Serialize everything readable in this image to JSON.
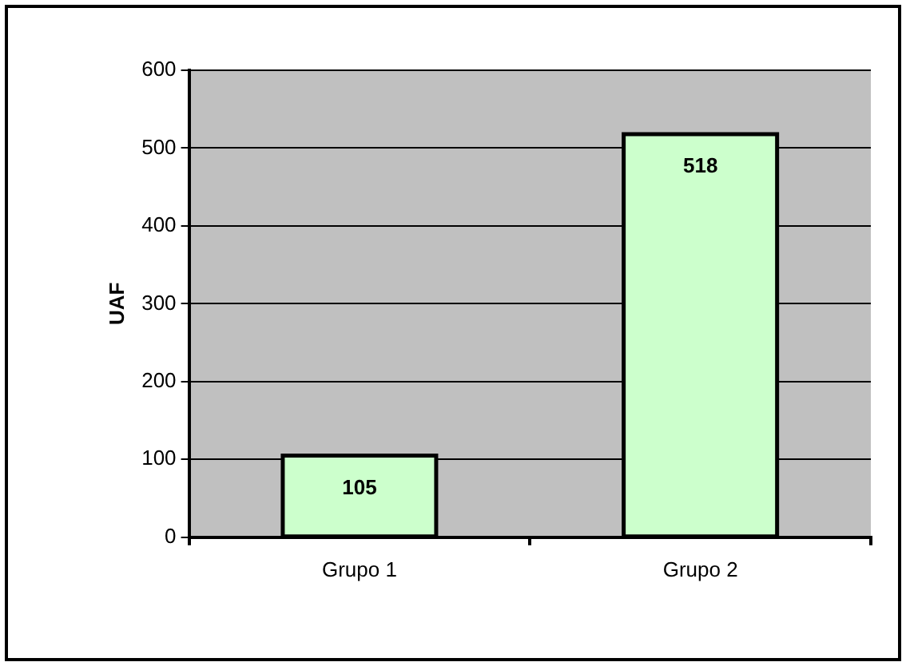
{
  "chart_data": {
    "type": "bar",
    "ylabel": "UAF",
    "categories": [
      "Grupo 1",
      "Grupo 2"
    ],
    "values": [
      105,
      518
    ],
    "color": "#ccffcc",
    "ylim": [
      0,
      600
    ],
    "yticks": [
      0,
      100,
      200,
      300,
      400,
      500,
      600
    ],
    "grid": "y",
    "data_labels": true,
    "legend": false
  }
}
